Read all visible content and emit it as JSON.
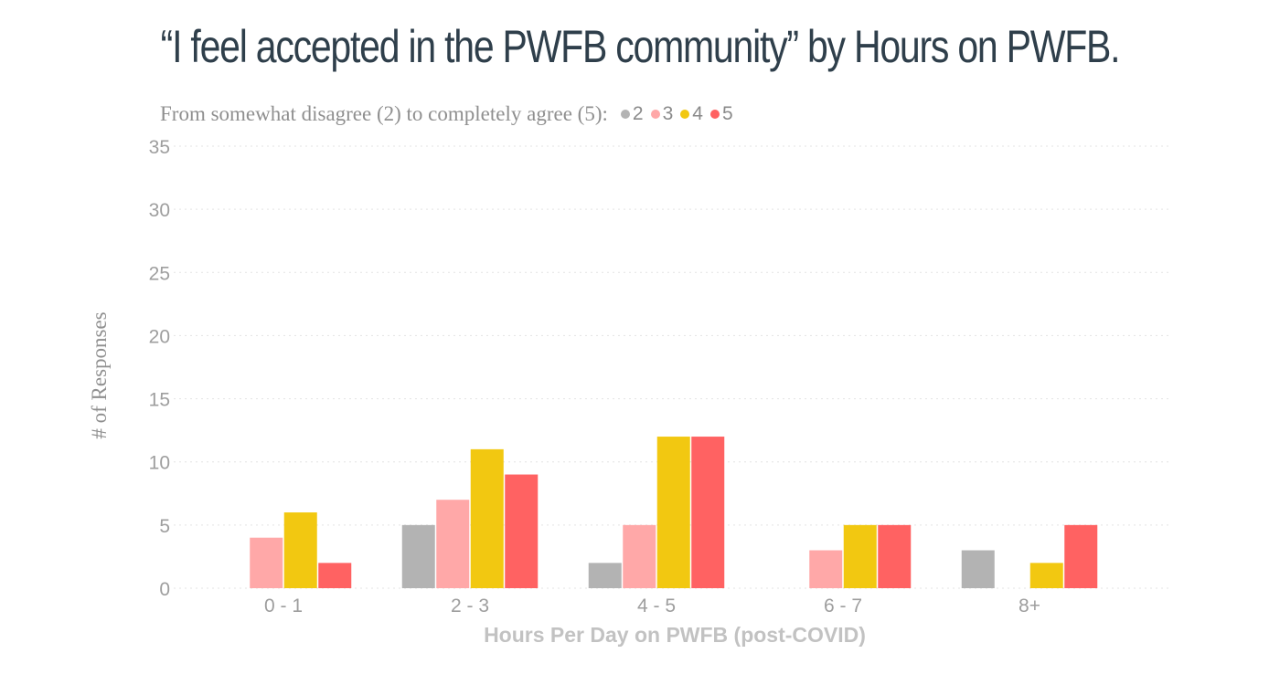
{
  "chart_data": {
    "type": "bar",
    "title": "“I feel accepted in the PWFB community” by Hours on PWFB.",
    "legend_intro": "From somewhat disagree (2) to completely agree (5):",
    "legend_position": "top-left",
    "xlabel": "Hours Per Day on PWFB (post-COVID)",
    "ylabel": "# of Responses",
    "ylim": [
      0,
      35
    ],
    "yticks": [
      0,
      5,
      10,
      15,
      20,
      25,
      30,
      35
    ],
    "grid": true,
    "categories": [
      "0 - 1",
      "2 - 3",
      "4 - 5",
      "6 - 7",
      "8+"
    ],
    "series": [
      {
        "name": "2",
        "color": "#b3b3b3",
        "values": [
          0,
          5,
          2,
          0,
          3
        ]
      },
      {
        "name": "3",
        "color": "#ffa8a8",
        "values": [
          4,
          7,
          5,
          3,
          0
        ]
      },
      {
        "name": "4",
        "color": "#f2c811",
        "values": [
          6,
          11,
          12,
          5,
          2
        ]
      },
      {
        "name": "5",
        "color": "#ff6262",
        "values": [
          2,
          9,
          12,
          5,
          5
        ]
      }
    ]
  }
}
